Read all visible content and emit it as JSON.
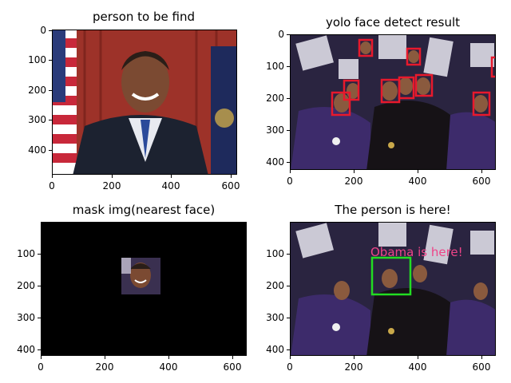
{
  "panels": [
    {
      "title": "person to be find",
      "yticks": [
        "0",
        "100",
        "200",
        "300",
        "400"
      ],
      "xticks": [
        "0",
        "200",
        "400",
        "600"
      ]
    },
    {
      "title": "yolo face detect result",
      "yticks": [
        "0",
        "100",
        "200",
        "300",
        "400"
      ],
      "xticks": [
        "0",
        "200",
        "400",
        "600"
      ]
    },
    {
      "title": "mask img(nearest face)",
      "yticks": [
        "100",
        "200",
        "300",
        "400"
      ],
      "xticks": [
        "0",
        "200",
        "400",
        "600"
      ]
    },
    {
      "title": "The person is here!",
      "yticks": [
        "100",
        "200",
        "300",
        "400"
      ],
      "xticks": [
        "0",
        "200",
        "400",
        "600"
      ],
      "overlay_label": "Obama is here!"
    }
  ],
  "colors": {
    "detect_box": "#e8192c",
    "found_box": "#22dd22",
    "overlay_text": "#ee4488"
  }
}
